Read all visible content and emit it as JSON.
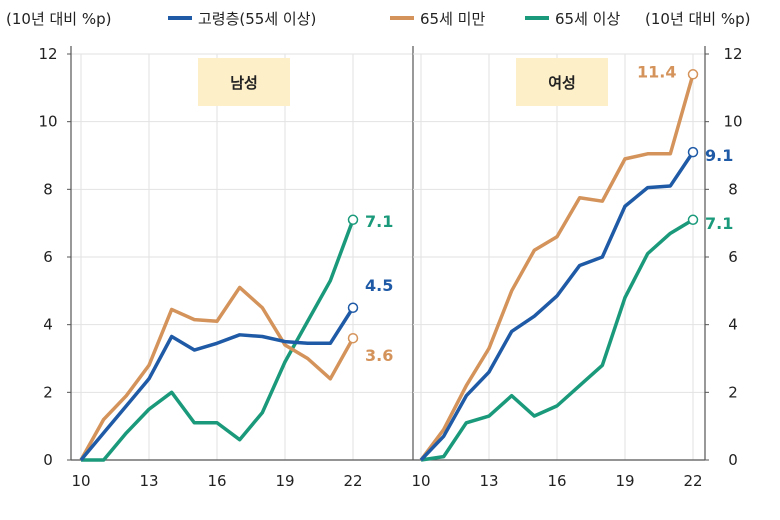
{
  "chart_data": [
    {
      "type": "line",
      "title": "남성",
      "ylabel": "(10년 대비 %p)",
      "x": [
        10,
        11,
        12,
        13,
        14,
        15,
        16,
        17,
        18,
        19,
        20,
        21,
        22
      ],
      "x_ticks": [
        "10",
        "13",
        "16",
        "19",
        "22"
      ],
      "y_ticks": [
        "0",
        "2",
        "4",
        "6",
        "8",
        "10",
        "12"
      ],
      "ylim": [
        0,
        12
      ],
      "grid": true,
      "series": [
        {
          "name": "고령층(55세 이상)",
          "color": "#1f5aa6",
          "values": [
            0,
            0.8,
            1.6,
            2.4,
            3.65,
            3.25,
            3.45,
            3.7,
            3.65,
            3.5,
            3.45,
            3.45,
            4.5
          ],
          "end_label": "4.5"
        },
        {
          "name": "65세 미만",
          "color": "#d4935a",
          "values": [
            0,
            1.2,
            1.9,
            2.8,
            4.45,
            4.15,
            4.1,
            5.1,
            4.5,
            3.4,
            3.0,
            2.4,
            3.6
          ],
          "end_label": "3.6"
        },
        {
          "name": "65세 이상",
          "color": "#1a9a7a",
          "values": [
            0,
            0,
            0.8,
            1.5,
            2.0,
            1.1,
            1.1,
            0.6,
            1.4,
            2.9,
            4.1,
            5.3,
            7.1
          ],
          "end_label": "7.1"
        }
      ]
    },
    {
      "type": "line",
      "title": "여성",
      "ylabel": "(10년 대비 %p)",
      "x": [
        10,
        11,
        12,
        13,
        14,
        15,
        16,
        17,
        18,
        19,
        20,
        21,
        22
      ],
      "x_ticks": [
        "10",
        "13",
        "16",
        "19",
        "22"
      ],
      "y_ticks": [
        "0",
        "2",
        "4",
        "6",
        "8",
        "10",
        "12"
      ],
      "ylim": [
        0,
        12
      ],
      "grid": true,
      "series": [
        {
          "name": "고령층(55세 이상)",
          "color": "#1f5aa6",
          "values": [
            0,
            0.7,
            1.9,
            2.6,
            3.8,
            4.25,
            4.85,
            5.75,
            6.0,
            7.5,
            8.05,
            8.1,
            9.1
          ],
          "end_label": "9.1"
        },
        {
          "name": "65세 미만",
          "color": "#d4935a",
          "values": [
            0,
            0.9,
            2.2,
            3.3,
            5.0,
            6.2,
            6.6,
            7.75,
            7.65,
            8.9,
            9.05,
            9.05,
            11.4
          ],
          "end_label": "11.4"
        },
        {
          "name": "65세 이상",
          "color": "#1a9a7a",
          "values": [
            0,
            0.1,
            1.1,
            1.3,
            1.9,
            1.3,
            1.6,
            2.2,
            2.8,
            4.8,
            6.1,
            6.7,
            7.1
          ],
          "end_label": "7.1"
        }
      ]
    }
  ],
  "legend": {
    "placement": "top",
    "items": [
      "고령층(55세 이상)",
      "65세 미만",
      "65세 이상"
    ],
    "colors": [
      "#1f5aa6",
      "#d4935a",
      "#1a9a7a"
    ]
  },
  "panel_label_bg": "#fdefc8"
}
